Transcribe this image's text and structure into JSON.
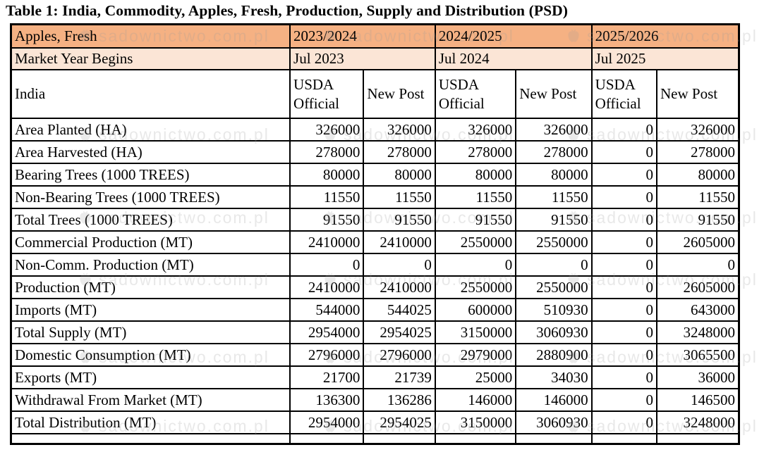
{
  "page_title": "Table 1: India, Commodity, Apples, Fresh, Production, Supply and Distribution (PSD)",
  "watermark": {
    "text": "sadownictwo.com.pl"
  },
  "colors": {
    "year_header_bg": "#F5B183",
    "market_year_bg": "#FBE5D6",
    "border": "#000000"
  },
  "table": {
    "commodity": "Apples, Fresh",
    "years": [
      "2023/2024",
      "2024/2025",
      "2025/2026"
    ],
    "market_year_label": "Market Year Begins",
    "market_years": [
      "Jul 2023",
      "Jul 2024",
      "Jul 2025"
    ],
    "country": "India",
    "source_columns": [
      "USDA Official",
      "New Post",
      "USDA Official",
      "New Post",
      "USDA Official",
      "New Post"
    ],
    "rows": [
      {
        "label": "Area Planted (HA)",
        "values": [
          "326000",
          "326000",
          "326000",
          "326000",
          "0",
          "326000"
        ]
      },
      {
        "label": "Area Harvested (HA)",
        "values": [
          "278000",
          "278000",
          "278000",
          "278000",
          "0",
          "278000"
        ]
      },
      {
        "label": "Bearing Trees (1000 TREES)",
        "values": [
          "80000",
          "80000",
          "80000",
          "80000",
          "0",
          "80000"
        ]
      },
      {
        "label": "Non-Bearing Trees (1000 TREES)",
        "values": [
          "11550",
          "11550",
          "11550",
          "11550",
          "0",
          "11550"
        ]
      },
      {
        "label": "Total Trees (1000 TREES)",
        "values": [
          "91550",
          "91550",
          "91550",
          "91550",
          "0",
          "91550"
        ]
      },
      {
        "label": "Commercial Production (MT)",
        "values": [
          "2410000",
          "2410000",
          "2550000",
          "2550000",
          "0",
          "2605000"
        ]
      },
      {
        "label": "Non-Comm. Production (MT)",
        "values": [
          "0",
          "0",
          "0",
          "0",
          "0",
          "0"
        ]
      },
      {
        "label": "Production (MT)",
        "values": [
          "2410000",
          "2410000",
          "2550000",
          "2550000",
          "0",
          "2605000"
        ]
      },
      {
        "label": "Imports (MT)",
        "values": [
          "544000",
          "544025",
          "600000",
          "510930",
          "0",
          "643000"
        ]
      },
      {
        "label": "Total Supply (MT)",
        "values": [
          "2954000",
          "2954025",
          "3150000",
          "3060930",
          "0",
          "3248000"
        ]
      },
      {
        "label": "Domestic Consumption (MT)",
        "values": [
          "2796000",
          "2796000",
          "2979000",
          "2880900",
          "0",
          "3065500"
        ]
      },
      {
        "label": "Exports (MT)",
        "values": [
          "21700",
          "21739",
          "25000",
          "34030",
          "0",
          "36000"
        ]
      },
      {
        "label": "Withdrawal From Market (MT)",
        "values": [
          "136300",
          "136286",
          "146000",
          "146000",
          "0",
          "146500"
        ]
      },
      {
        "label": "Total Distribution (MT)",
        "values": [
          "2954000",
          "2954025",
          "3150000",
          "3060930",
          "0",
          "3248000"
        ]
      }
    ]
  }
}
